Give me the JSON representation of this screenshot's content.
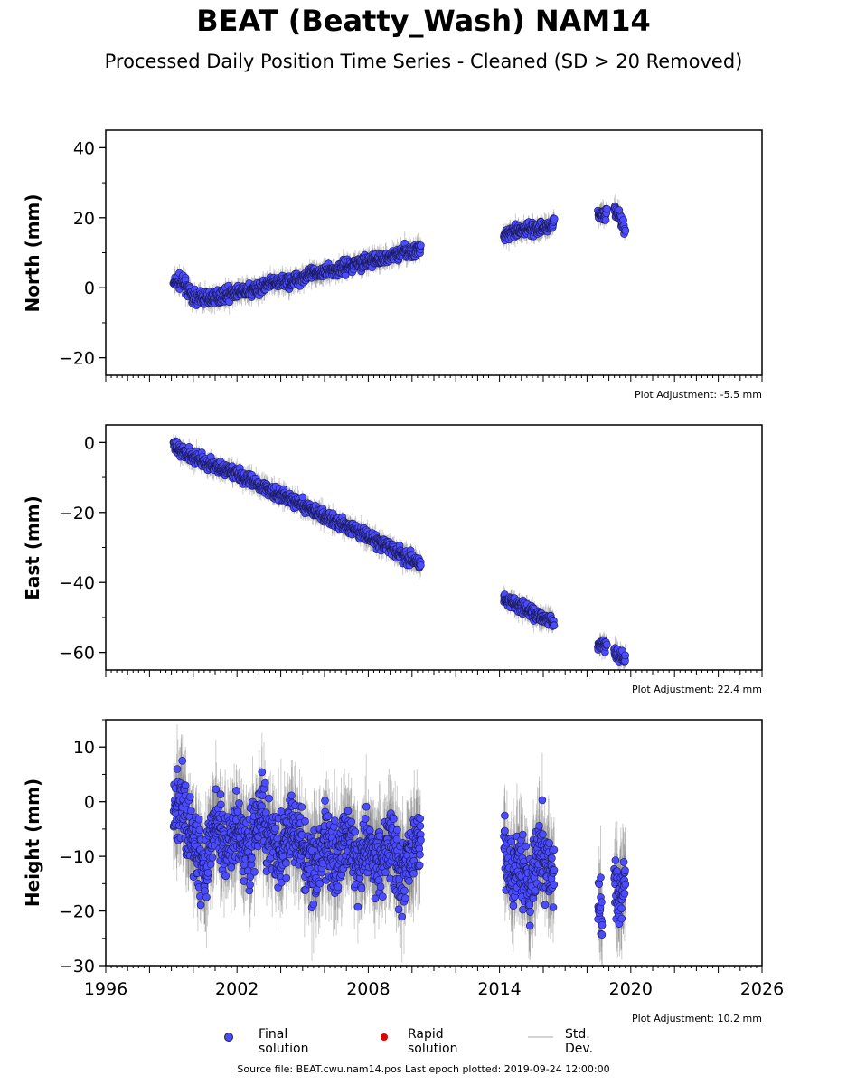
{
  "header": {
    "title": "BEAT (Beatty_Wash) NAM14",
    "subtitle": "Processed Daily Position Time Series - Cleaned (SD > 20 Removed)"
  },
  "legend": {
    "final_label": "Final solution",
    "rapid_label": "Rapid solution",
    "std_label": "Std. Dev.",
    "final_color": "#4b4bff",
    "rapid_color": "#e00000",
    "std_color": "#d3d3d3"
  },
  "footer": {
    "source": "Source file: BEAT.cwu.nam14.pos  Last epoch plotted: 2019-09-24 12:00:00"
  },
  "chart_data": [
    {
      "type": "scatter",
      "id": "north",
      "ylabel": "North (mm)",
      "xlim": [
        1996,
        2026
      ],
      "ylim": [
        -25,
        45
      ],
      "yticks": [
        -20,
        0,
        20,
        40
      ],
      "ytick_labels": [
        "−20",
        "0",
        "20",
        "40"
      ],
      "adjustment": "Plot Adjustment: -5.5 mm",
      "series": [
        {
          "segments": [
            {
              "x": [
                1999.1,
                1999.3,
                1999.6,
                1999.9,
                2000.3,
                2000.8,
                2001.5,
                2002.5,
                2003.5,
                2004.5,
                2005.5,
                2006.5,
                2007.5,
                2008.5,
                2009.5,
                2010.4
              ],
              "y": [
                1,
                2,
                1,
                -2,
                -3,
                -3,
                -2,
                -1,
                1,
                2,
                4,
                5,
                7,
                8,
                10,
                11
              ]
            },
            {
              "x": [
                2014.2,
                2014.8,
                2015.4,
                2016.0,
                2016.5
              ],
              "y": [
                15,
                16,
                17,
                17,
                18
              ]
            },
            {
              "x": [
                2018.5,
                2018.9
              ],
              "y": [
                21,
                21
              ]
            },
            {
              "x": [
                2019.25,
                2019.45,
                2019.75
              ],
              "y": [
                23,
                21,
                16
              ]
            }
          ]
        }
      ]
    },
    {
      "type": "scatter",
      "id": "east",
      "ylabel": "East (mm)",
      "xlim": [
        1996,
        2026
      ],
      "ylim": [
        -65,
        5
      ],
      "yticks": [
        -60,
        -40,
        -20,
        0
      ],
      "ytick_labels": [
        "−60",
        "−40",
        "−20",
        "0"
      ],
      "adjustment": "Plot Adjustment: 22.4 mm",
      "series": [
        {
          "segments": [
            {
              "x": [
                1999.1,
                2000.0,
                2001.0,
                2002.0,
                2003.0,
                2004.0,
                2005.0,
                2006.0,
                2007.0,
                2008.0,
                2009.0,
                2010.4
              ],
              "y": [
                -1,
                -4,
                -7,
                -9,
                -12,
                -15,
                -18,
                -21,
                -24,
                -27,
                -30,
                -35
              ]
            },
            {
              "x": [
                2014.2,
                2015.0,
                2015.6,
                2016.5
              ],
              "y": [
                -45,
                -47,
                -49,
                -51
              ]
            },
            {
              "x": [
                2018.5,
                2018.9
              ],
              "y": [
                -58,
                -58
              ]
            },
            {
              "x": [
                2019.25,
                2019.75
              ],
              "y": [
                -60,
                -62
              ]
            }
          ]
        }
      ]
    },
    {
      "type": "scatter",
      "id": "height",
      "ylabel": "Height (mm)",
      "xlim": [
        1996,
        2026
      ],
      "ylim": [
        -30,
        15
      ],
      "yticks": [
        -30,
        -20,
        -10,
        0,
        10
      ],
      "ytick_labels": [
        "−30",
        "−20",
        "−10",
        "0",
        "10"
      ],
      "xticks": [
        1996,
        2002,
        2008,
        2014,
        2020,
        2026
      ],
      "xtick_labels": [
        "1996",
        "2002",
        "2008",
        "2014",
        "2020",
        "2026"
      ],
      "adjustment": "Plot Adjustment: 10.2 mm",
      "series": [
        {
          "segments": [
            {
              "x": [
                1999.1,
                1999.5,
                2000.0,
                2000.5,
                2001.0,
                2001.5,
                2002.0,
                2002.5,
                2003.0,
                2003.5,
                2004.0,
                2004.5,
                2005.0,
                2005.5,
                2006.0,
                2006.5,
                2007.0,
                2007.5,
                2008.0,
                2008.5,
                2009.0,
                2009.5,
                2010.0,
                2010.4
              ],
              "y": [
                -2,
                0,
                -8,
                -12,
                -3,
                -9,
                -5,
                -10,
                -2,
                -6,
                -11,
                -4,
                -9,
                -13,
                -7,
                -10,
                -5,
                -12,
                -8,
                -11,
                -6,
                -14,
                -9,
                -7
              ]
            },
            {
              "x": [
                2014.2,
                2014.6,
                2015.0,
                2015.4,
                2015.8,
                2016.2,
                2016.5
              ],
              "y": [
                -8,
                -14,
                -11,
                -16,
                -7,
                -13,
                -12
              ]
            },
            {
              "x": [
                2018.5,
                2018.7
              ],
              "y": [
                -18,
                -22
              ]
            },
            {
              "x": [
                2019.25,
                2019.5,
                2019.75
              ],
              "y": [
                -15,
                -19,
                -14
              ]
            }
          ]
        }
      ]
    }
  ]
}
